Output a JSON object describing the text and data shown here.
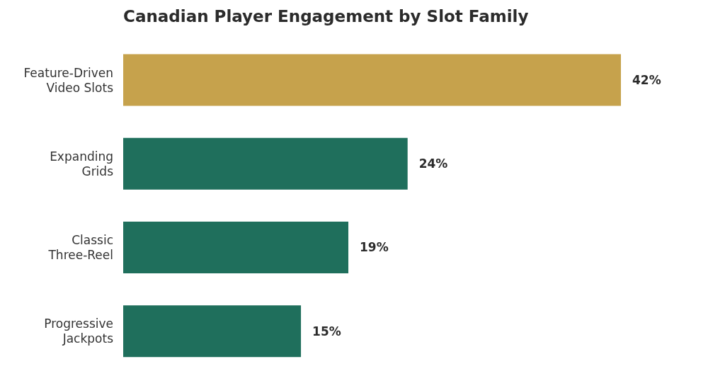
{
  "chart_data": {
    "type": "bar",
    "orientation": "horizontal",
    "title": "Canadian Player Engagement by Slot Family",
    "categories": [
      "Feature-Driven Video Slots",
      "Expanding Grids",
      "Classic Three-Reel",
      "Progressive Jackpots"
    ],
    "values": [
      42,
      24,
      19,
      15
    ],
    "value_labels": [
      "42%",
      "24%",
      "19%",
      "15%"
    ],
    "colors": [
      "#c6a24c",
      "#1f6f5c",
      "#1f6f5c",
      "#1f6f5c"
    ],
    "grid": false,
    "legend": false
  }
}
